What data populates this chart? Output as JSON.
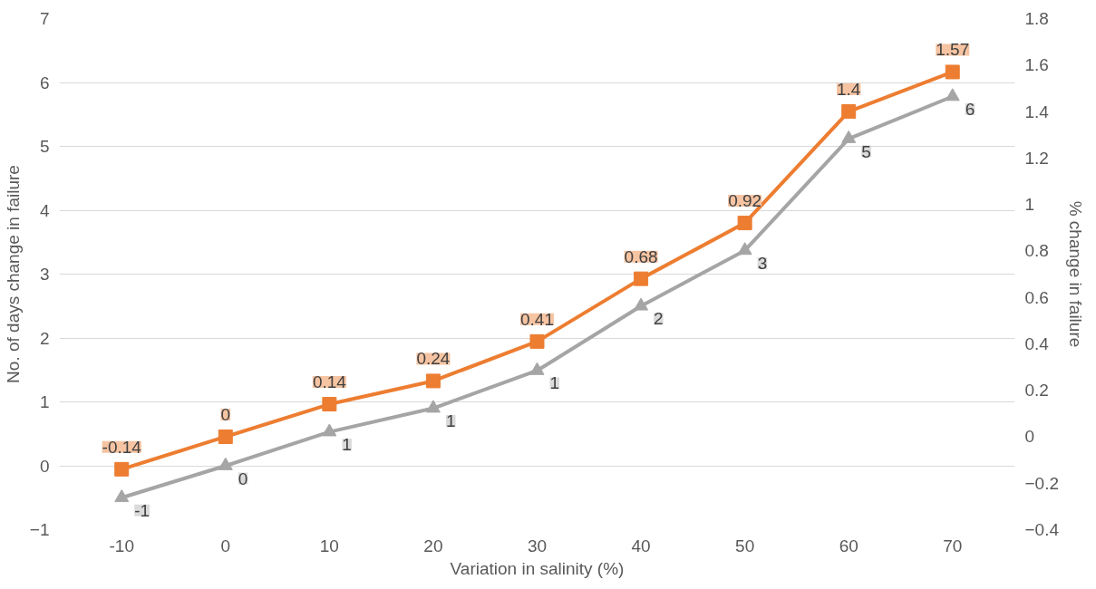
{
  "chart_data": {
    "type": "line",
    "xlabel": "Variation in salinity (%)",
    "ylabel": "No. of days change in failure",
    "y2label": "% change in failure",
    "categories": [
      "-10",
      "0",
      "10",
      "20",
      "30",
      "40",
      "50",
      "60",
      "70"
    ],
    "ylim": [
      -1,
      7
    ],
    "yticks": [
      -1,
      0,
      1,
      2,
      3,
      4,
      5,
      6,
      7
    ],
    "y2lim": [
      -0.4,
      1.8
    ],
    "y2ticks": [
      -0.4,
      -0.2,
      0,
      0.2,
      0.4,
      0.6,
      0.8,
      1,
      1.2,
      1.4,
      1.6,
      1.8
    ],
    "grid": "y",
    "line_style": "solid",
    "series": [
      {
        "color": "#a5a5a5",
        "marker": "triangle",
        "values": [
          -0.5,
          0,
          0.53,
          0.9,
          1.49,
          2.5,
          3.37,
          5.12,
          5.78
        ],
        "value_labels": [
          "-1",
          "0",
          "1",
          "1",
          "1",
          "2",
          "3",
          "5",
          "6"
        ]
      },
      {
        "color": "#ed7d31",
        "marker": "square",
        "axis": "y2",
        "data_labels": true,
        "values": [
          -0.14,
          0,
          0.14,
          0.24,
          0.41,
          0.68,
          0.92,
          1.4,
          1.57
        ]
      }
    ]
  }
}
